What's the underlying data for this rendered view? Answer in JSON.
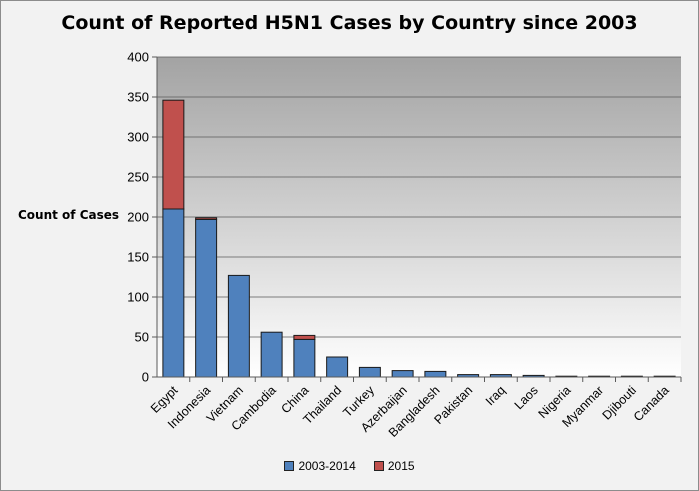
{
  "chart_data": {
    "type": "bar",
    "stacked": true,
    "title": "Count of Reported H5N1 Cases by Country since 2003",
    "xlabel": "",
    "ylabel": "Count of Cases",
    "ylim": [
      0,
      400
    ],
    "yticks": [
      0,
      50,
      100,
      150,
      200,
      250,
      300,
      350,
      400
    ],
    "grid": true,
    "legend_position": "bottom",
    "categories": [
      "Egypt",
      "Indonesia",
      "Vietnam",
      "Cambodia",
      "China",
      "Thailand",
      "Turkey",
      "Azerbaijan",
      "Bangladesh",
      "Pakistan",
      "Iraq",
      "Laos",
      "Nigeria",
      "Myanmar",
      "Djibouti",
      "Canada"
    ],
    "series": [
      {
        "name": "2003-2014",
        "color": "#4f81bd",
        "values": [
          210,
          197,
          127,
          56,
          47,
          25,
          12,
          8,
          7,
          3,
          3,
          2,
          1,
          1,
          1,
          1
        ]
      },
      {
        "name": "2015",
        "color": "#c0504d",
        "values": [
          136,
          2,
          0,
          0,
          5,
          0,
          0,
          0,
          0,
          0,
          0,
          0,
          0,
          0,
          0,
          0
        ]
      }
    ]
  }
}
